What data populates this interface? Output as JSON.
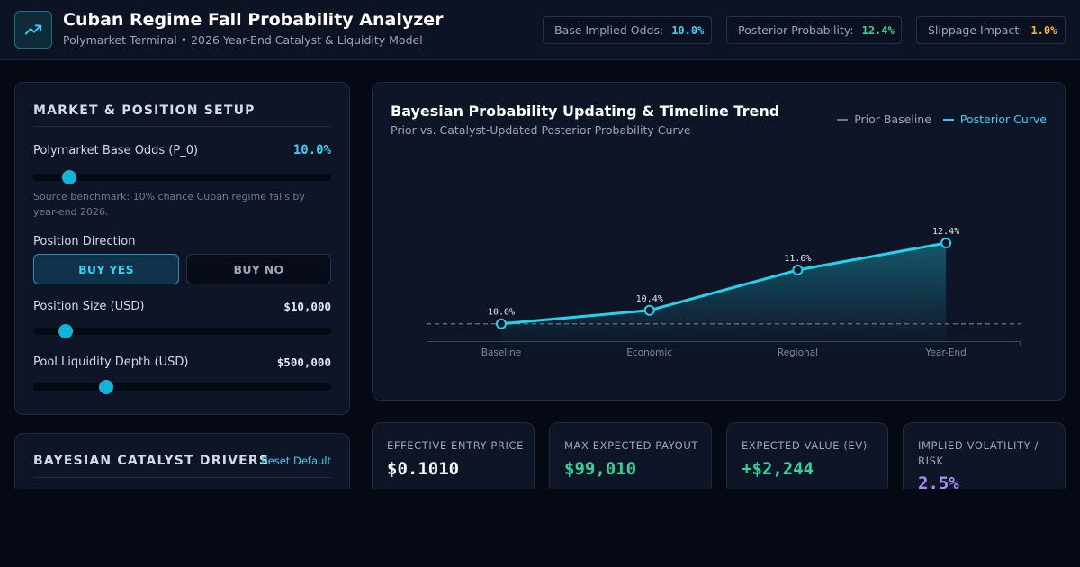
{
  "header": {
    "title": "Cuban Regime Fall Probability Analyzer",
    "subtitle": "Polymarket Terminal • 2026 Year-End Catalyst & Liquidity Model",
    "logo_icon": "trending-up-icon",
    "stats": [
      {
        "label": "Base Implied Odds:",
        "value": "10.0%",
        "color": "#3ccff2"
      },
      {
        "label": "Posterior Probability:",
        "value": "12.4%",
        "color": "#34d399"
      },
      {
        "label": "Slippage Impact:",
        "value": "1.0%",
        "color": "#f5b83d"
      }
    ]
  },
  "setup": {
    "title": "MARKET & POSITION SETUP",
    "base_odds": {
      "label": "Polymarket Base Odds (P_0)",
      "value": "10.0%",
      "level": 0.12
    },
    "hint": "Source benchmark: 10% chance Cuban regime falls by year-end 2026.",
    "direction": {
      "label": "Position Direction",
      "yes": "BUY YES",
      "no": "BUY NO",
      "selected": "yes"
    },
    "position_size": {
      "label": "Position Size (USD)",
      "value": "$10,000",
      "level": 0.11
    },
    "liquidity": {
      "label": "Pool Liquidity Depth (USD)",
      "value": "$500,000",
      "level": 0.245
    }
  },
  "drivers": {
    "title": "BAYESIAN CATALYST DRIVERS",
    "reset_label": "Reset Default"
  },
  "chart": {
    "title": "Bayesian Probability Updating & Timeline Trend",
    "subtitle": "Prior vs. Catalyst-Updated Posterior Probability Curve",
    "legend": {
      "prior": "Prior Baseline",
      "posterior": "Posterior Curve"
    }
  },
  "chart_data": {
    "type": "line",
    "categories": [
      "Baseline",
      "Economic",
      "Regional",
      "Year-End"
    ],
    "series": [
      {
        "name": "Posterior Curve",
        "values": [
          10.0,
          10.4,
          11.6,
          12.4
        ],
        "labels": [
          "10.0%",
          "10.4%",
          "11.6%",
          "12.4%"
        ],
        "color": "#22d3ee"
      },
      {
        "name": "Prior Baseline",
        "values": [
          10.0,
          10.0,
          10.0,
          10.0
        ],
        "color": "#6b7789"
      }
    ],
    "ylim": [
      8,
      14
    ],
    "grid": false
  },
  "metrics": [
    {
      "label": "EFFECTIVE ENTRY PRICE",
      "value": "$0.1010",
      "color": "#f5f7fa"
    },
    {
      "label": "MAX EXPECTED PAYOUT",
      "value": "$99,010",
      "color": "#34d399"
    },
    {
      "label": "EXPECTED VALUE (EV)",
      "value": "+$2,244",
      "color": "#34d399"
    },
    {
      "label": "IMPLIED VOLATILITY / RISK",
      "value": "2.5%",
      "color": "#a78bfa"
    }
  ]
}
